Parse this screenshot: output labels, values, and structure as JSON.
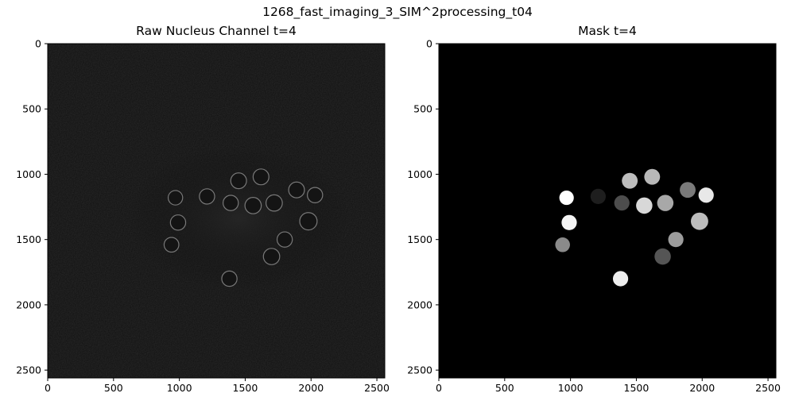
{
  "figure": {
    "title": "1268_fast_imaging_3_SIM^2processing_t04"
  },
  "panels": [
    {
      "title": "Raw Nucleus Channel t=4",
      "kind": "raw",
      "x_ticks": [
        0,
        500,
        1000,
        1500,
        2000,
        2500
      ],
      "y_ticks": [
        0,
        500,
        1000,
        1500,
        2000,
        2500
      ],
      "xlim": [
        0,
        2560
      ],
      "ylim": [
        0,
        2560
      ]
    },
    {
      "title": "Mask t=4",
      "kind": "mask",
      "x_ticks": [
        0,
        500,
        1000,
        1500,
        2000,
        2500
      ],
      "y_ticks": [
        0,
        500,
        1000,
        1500,
        2000,
        2500
      ],
      "xlim": [
        0,
        2560
      ],
      "ylim": [
        0,
        2560
      ]
    }
  ],
  "nuclei": [
    {
      "x": 1450,
      "y": 1050,
      "r": 60,
      "gray": "#bdbdbd"
    },
    {
      "x": 1620,
      "y": 1020,
      "r": 60,
      "gray": "#b8b8b8"
    },
    {
      "x": 1890,
      "y": 1120,
      "r": 60,
      "gray": "#7a7a7a"
    },
    {
      "x": 2030,
      "y": 1160,
      "r": 58,
      "gray": "#e8e8e8"
    },
    {
      "x": 970,
      "y": 1180,
      "r": 55,
      "gray": "#ffffff"
    },
    {
      "x": 1210,
      "y": 1170,
      "r": 58,
      "gray": "#1e1e1e"
    },
    {
      "x": 1390,
      "y": 1220,
      "r": 58,
      "gray": "#4d4d4d"
    },
    {
      "x": 1560,
      "y": 1240,
      "r": 62,
      "gray": "#d8d8d8"
    },
    {
      "x": 1720,
      "y": 1220,
      "r": 62,
      "gray": "#a8a8a8"
    },
    {
      "x": 990,
      "y": 1370,
      "r": 58,
      "gray": "#f4f4f4"
    },
    {
      "x": 1980,
      "y": 1360,
      "r": 66,
      "gray": "#bcbcbc"
    },
    {
      "x": 1800,
      "y": 1500,
      "r": 58,
      "gray": "#9c9c9c"
    },
    {
      "x": 940,
      "y": 1540,
      "r": 56,
      "gray": "#8a8a8a"
    },
    {
      "x": 1700,
      "y": 1630,
      "r": 62,
      "gray": "#555555"
    },
    {
      "x": 1380,
      "y": 1800,
      "r": 58,
      "gray": "#eeeeee"
    }
  ],
  "colors": {
    "raw_background": "#0e0e0e",
    "mask_background": "#000000",
    "ring": "#9a9a9a"
  }
}
